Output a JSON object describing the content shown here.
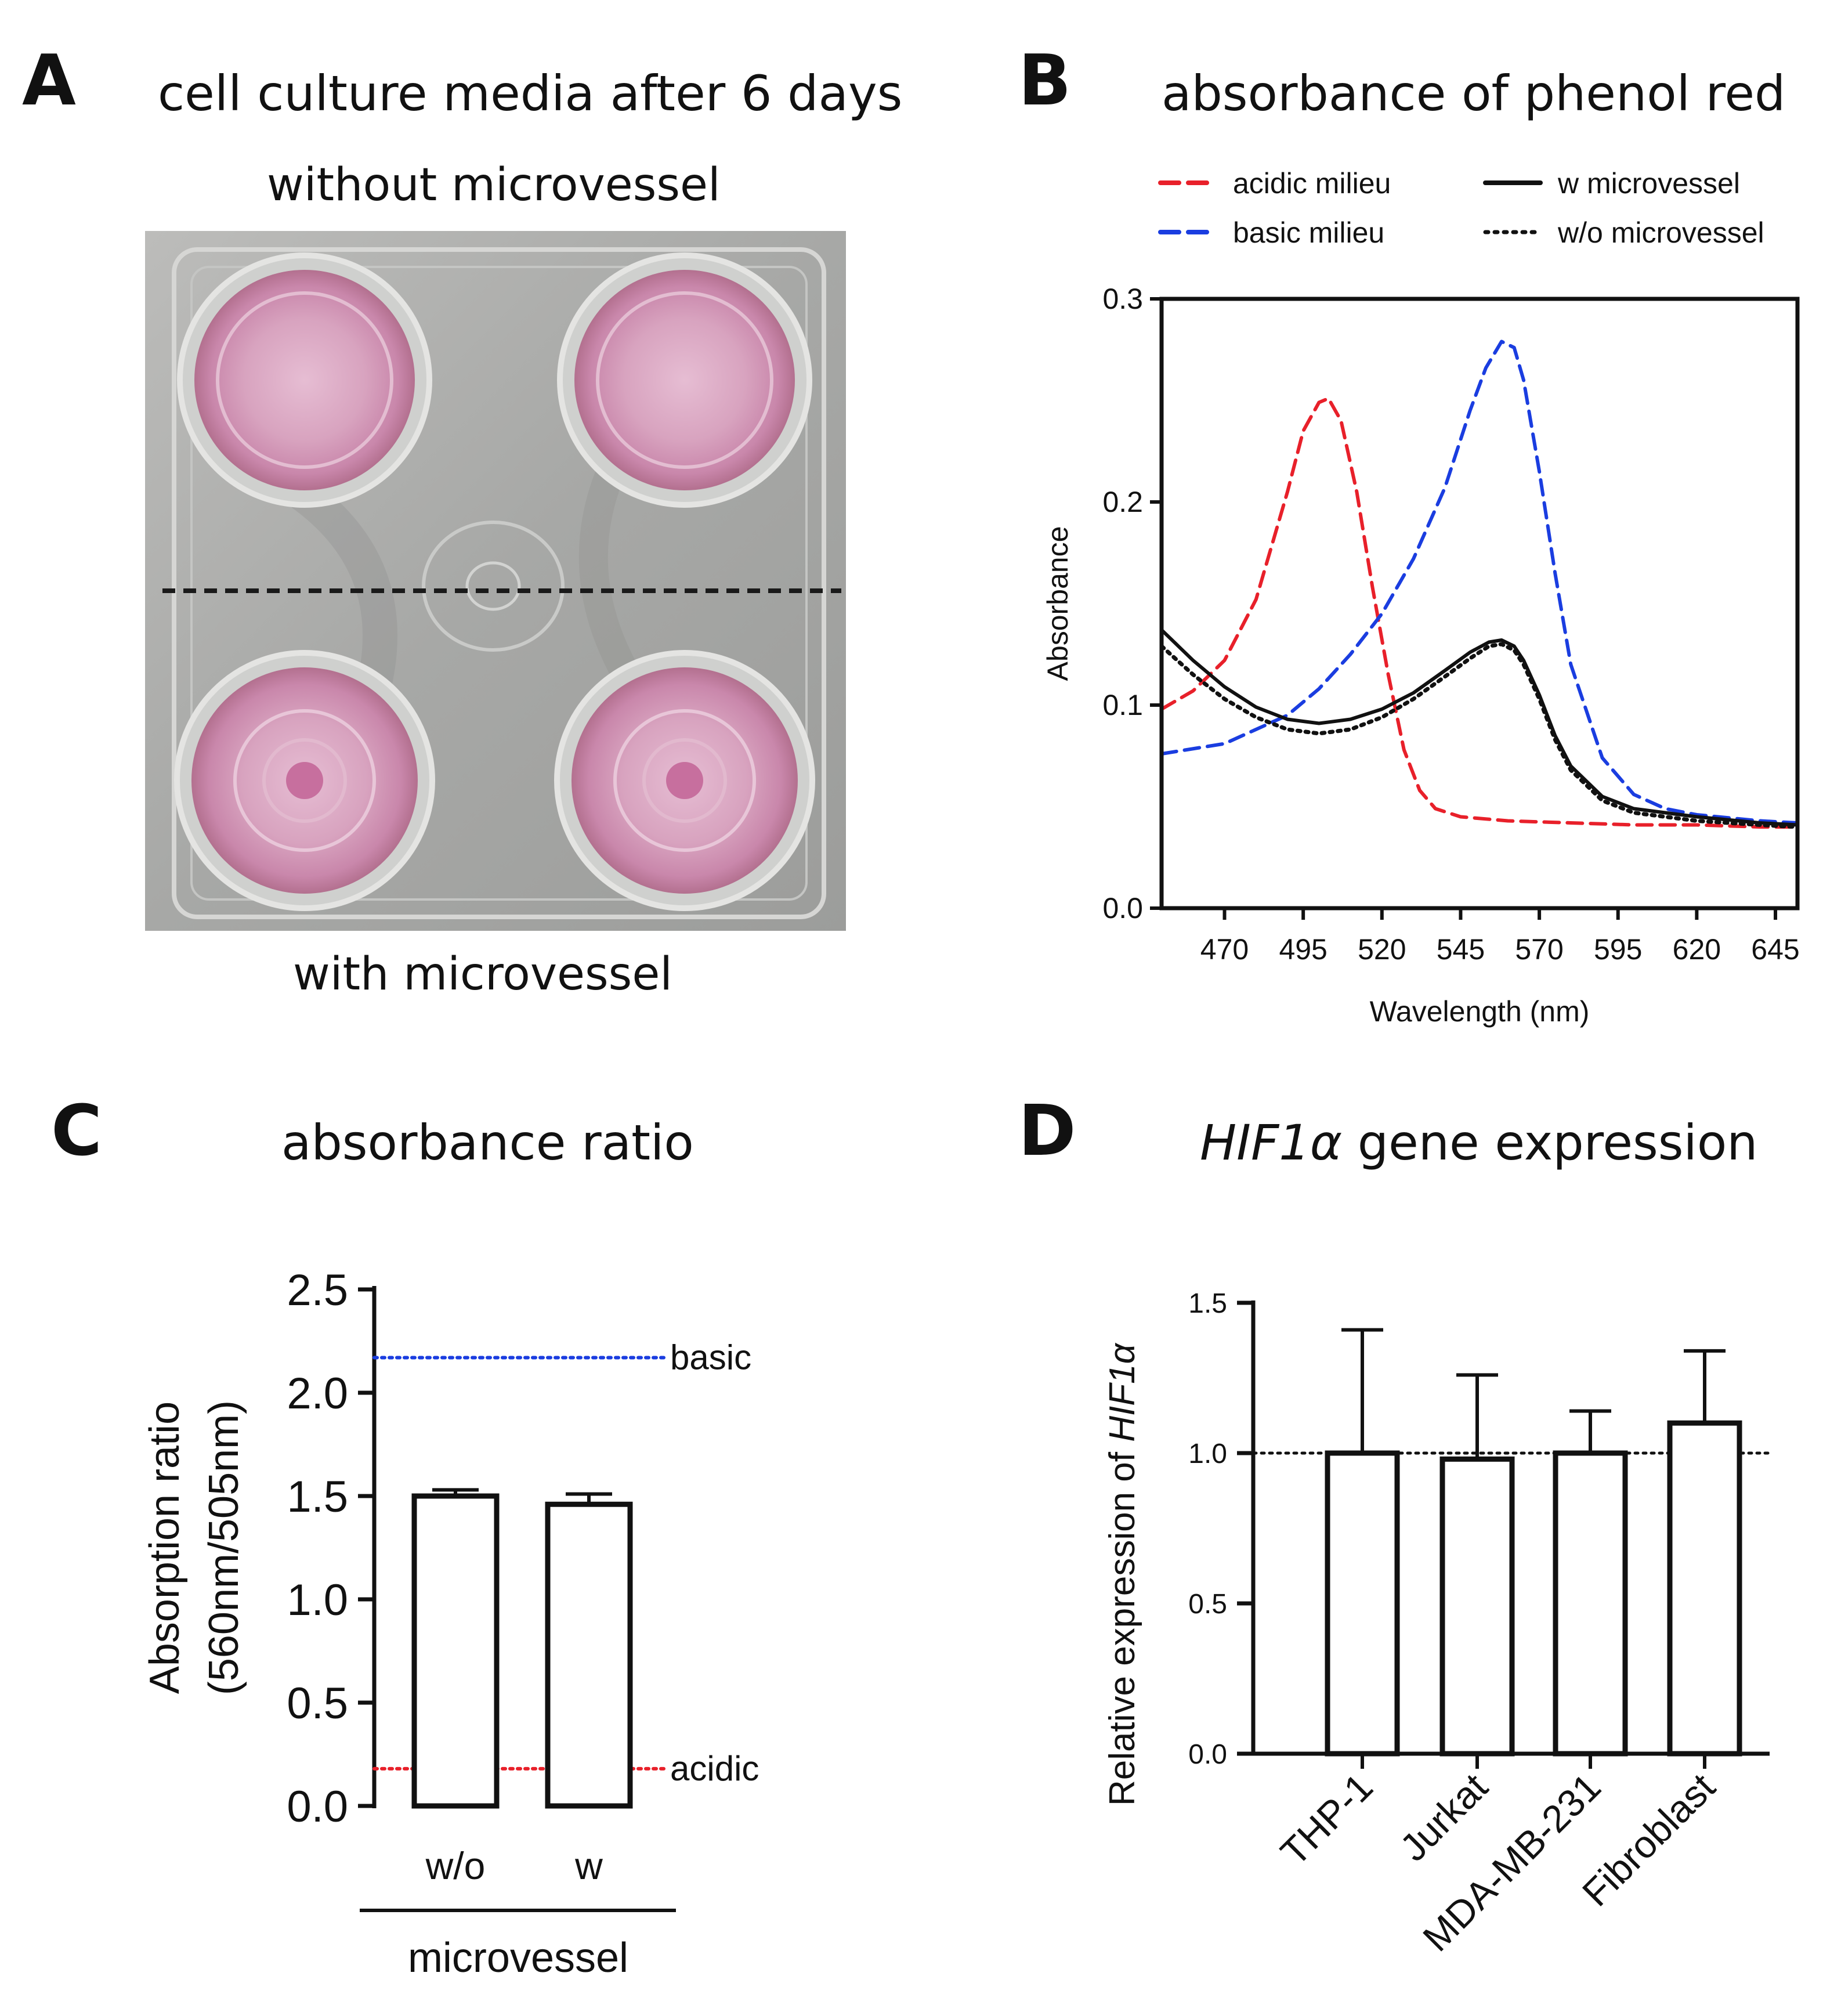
{
  "panels": {
    "A": {
      "letter": "A",
      "title": "cell culture media after 6 days",
      "top_label": "without microvessel",
      "bottom_label": "with microvessel"
    },
    "B": {
      "letter": "B",
      "title": "absorbance of phenol red"
    },
    "C": {
      "letter": "C",
      "title": "absorbance ratio"
    },
    "D": {
      "letter": "D",
      "title_italic": "HIF1α",
      "title_rest": " gene expression"
    }
  },
  "chart_data": [
    {
      "panel": "B",
      "type": "line",
      "xlabel": "Wavelength (nm)",
      "ylabel": "Absorbance",
      "xlim": [
        450,
        652
      ],
      "ylim": [
        0,
        0.3
      ],
      "xticks": [
        470,
        495,
        520,
        545,
        570,
        595,
        620,
        645
      ],
      "yticks": [
        "0.0",
        "0.1",
        "0.2",
        "0.3"
      ],
      "legend": [
        "acidic milieu",
        "basic milieu",
        "w microvessel",
        "w/o microvessel"
      ],
      "series": [
        {
          "name": "acidic milieu",
          "color": "#e8202a",
          "style": "dashed",
          "x": [
            450,
            460,
            470,
            480,
            490,
            495,
            500,
            503,
            507,
            512,
            517,
            522,
            527,
            532,
            537,
            545,
            560,
            580,
            600,
            620,
            640,
            652
          ],
          "y": [
            0.098,
            0.107,
            0.122,
            0.152,
            0.205,
            0.235,
            0.249,
            0.251,
            0.24,
            0.205,
            0.158,
            0.115,
            0.078,
            0.058,
            0.049,
            0.045,
            0.043,
            0.042,
            0.041,
            0.041,
            0.04,
            0.04
          ]
        },
        {
          "name": "basic milieu",
          "color": "#1a3de0",
          "style": "dashed",
          "x": [
            450,
            470,
            490,
            500,
            510,
            520,
            530,
            540,
            548,
            553,
            558,
            562,
            565,
            570,
            575,
            580,
            590,
            600,
            610,
            620,
            640,
            652
          ],
          "y": [
            0.076,
            0.081,
            0.095,
            0.108,
            0.125,
            0.145,
            0.172,
            0.207,
            0.245,
            0.266,
            0.279,
            0.276,
            0.26,
            0.215,
            0.165,
            0.12,
            0.074,
            0.056,
            0.049,
            0.046,
            0.043,
            0.042
          ]
        },
        {
          "name": "w microvessel",
          "color": "#111111",
          "style": "solid",
          "x": [
            450,
            460,
            470,
            480,
            490,
            500,
            510,
            520,
            530,
            540,
            548,
            554,
            558,
            562,
            565,
            570,
            575,
            580,
            590,
            600,
            620,
            640,
            652
          ],
          "y": [
            0.137,
            0.122,
            0.109,
            0.099,
            0.093,
            0.091,
            0.093,
            0.098,
            0.106,
            0.117,
            0.126,
            0.131,
            0.132,
            0.129,
            0.122,
            0.105,
            0.085,
            0.07,
            0.055,
            0.049,
            0.045,
            0.042,
            0.041
          ]
        },
        {
          "name": "w/o microvessel",
          "color": "#111111",
          "style": "dotted",
          "x": [
            450,
            460,
            470,
            480,
            490,
            500,
            510,
            520,
            530,
            540,
            548,
            554,
            558,
            562,
            565,
            570,
            575,
            580,
            590,
            600,
            620,
            640,
            652
          ],
          "y": [
            0.129,
            0.115,
            0.103,
            0.094,
            0.088,
            0.086,
            0.088,
            0.094,
            0.103,
            0.114,
            0.123,
            0.129,
            0.13,
            0.127,
            0.12,
            0.103,
            0.083,
            0.068,
            0.053,
            0.047,
            0.043,
            0.041,
            0.04
          ]
        }
      ]
    },
    {
      "panel": "C",
      "type": "bar",
      "ylabel_lines": [
        "Absorption ratio",
        "(560nm/505nm)"
      ],
      "ylim": [
        0,
        2.5
      ],
      "yticks": [
        "0.0",
        "0.5",
        "1.0",
        "1.5",
        "2.0",
        "2.5"
      ],
      "categories": [
        "w/o",
        "w"
      ],
      "values": [
        1.5,
        1.46
      ],
      "errors": [
        0.03,
        0.05
      ],
      "group_label": "microvessel",
      "reference_lines": [
        {
          "label": "basic",
          "value": 2.17,
          "color": "#1a3de0"
        },
        {
          "label": "acidic",
          "value": 0.18,
          "color": "#e8202a"
        }
      ]
    },
    {
      "panel": "D",
      "type": "bar",
      "ylabel_prefix": "Relative expression of ",
      "ylabel_italic": "HIF1α",
      "ylim": [
        0,
        1.5
      ],
      "yticks": [
        "0.0",
        "0.5",
        "1.0",
        "1.5"
      ],
      "categories": [
        "THP-1",
        "Jurkat",
        "MDA-MB-231",
        "Fibroblast"
      ],
      "values": [
        1.0,
        0.98,
        1.0,
        1.1
      ],
      "errors": [
        0.41,
        0.28,
        0.14,
        0.24
      ],
      "reference_line": 1.0
    }
  ]
}
